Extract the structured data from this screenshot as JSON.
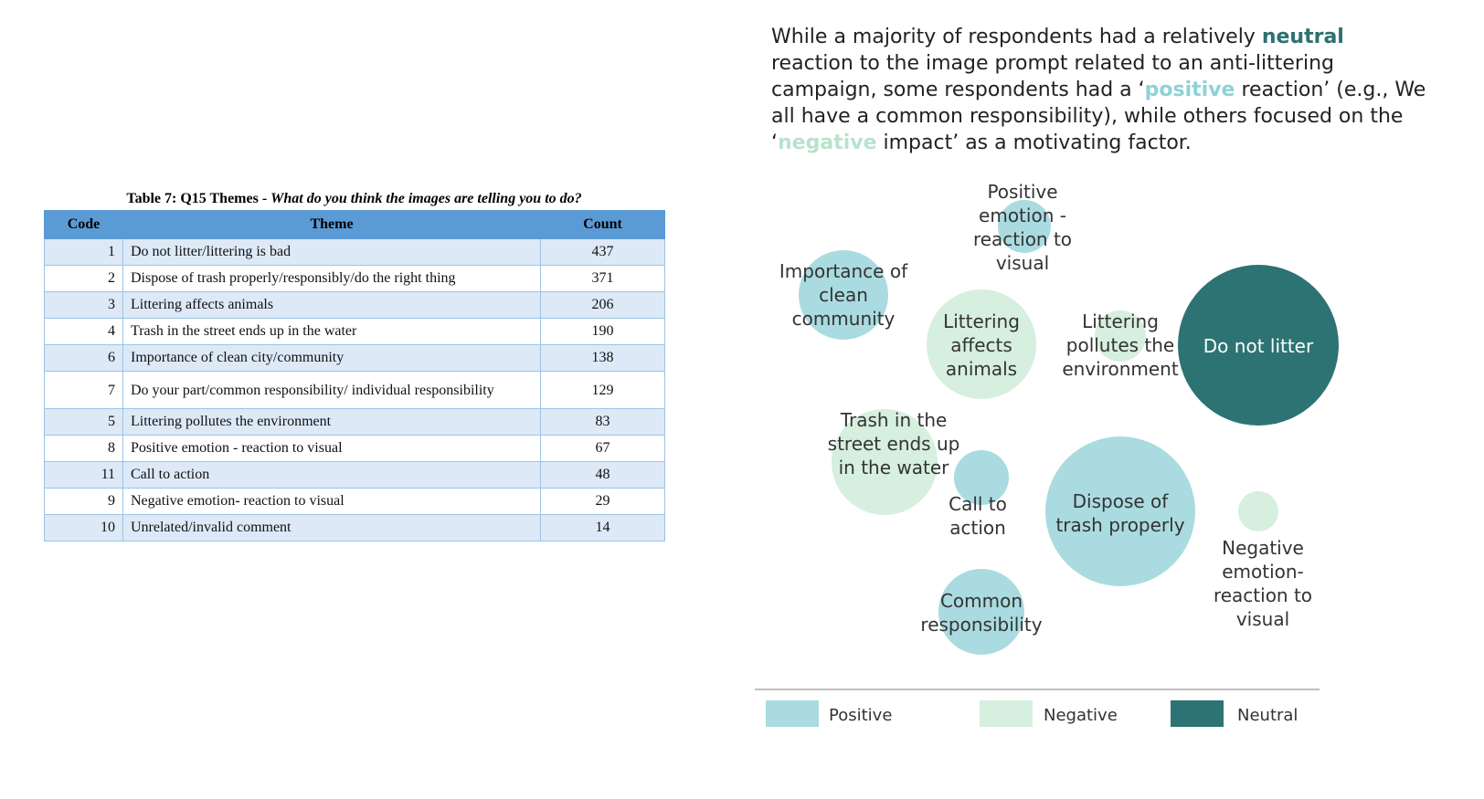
{
  "table": {
    "caption_prefix": "Table 7: Q15 Themes - ",
    "caption_question": "What do you think the images are telling you to do?",
    "headers": [
      "Code",
      "Theme",
      "Count"
    ],
    "rows": [
      {
        "code": "1",
        "theme": "Do not litter/littering is bad",
        "count": "437"
      },
      {
        "code": "2",
        "theme": "Dispose of trash properly/responsibly/do the right thing",
        "count": "371"
      },
      {
        "code": "3",
        "theme": "Littering affects animals",
        "count": "206"
      },
      {
        "code": "4",
        "theme": "Trash in the street ends up in the water",
        "count": "190"
      },
      {
        "code": "6",
        "theme": "Importance of clean city/community",
        "count": "138"
      },
      {
        "code": "7",
        "theme": "Do your part/common responsibility/ individual responsibility",
        "count": "129"
      },
      {
        "code": "5",
        "theme": "Littering pollutes the environment",
        "count": "83"
      },
      {
        "code": "8",
        "theme": "Positive emotion - reaction to visual",
        "count": "67"
      },
      {
        "code": "11",
        "theme": "Call to action",
        "count": "48"
      },
      {
        "code": "9",
        "theme": "Negative emotion- reaction to visual",
        "count": "29"
      },
      {
        "code": "10",
        "theme": "Unrelated/invalid comment",
        "count": "14"
      }
    ]
  },
  "intro": {
    "part1": "While a majority of respondents had a relatively ",
    "neutral_word": "neutral",
    "part2": " reaction to the image prompt related to an anti-littering campaign, some respondents had a ‘",
    "positive_word": "positive",
    "part3": " reaction’ (e.g., We all have a common responsibility), while others focused on the ‘",
    "negative_word": "negative",
    "part4": " impact’ as a motivating factor."
  },
  "colors": {
    "positive": "#a9dbe0",
    "negative": "#d6efdf",
    "neutral": "#2d7373",
    "axis": "#999999"
  },
  "chart_data": {
    "type": "bubble",
    "bubbles": [
      {
        "label": [
          "Do not litter"
        ],
        "category": "neutral"
      },
      {
        "label": [
          "Dispose of",
          "trash properly"
        ],
        "category": "positive"
      },
      {
        "label": [
          "Littering",
          "affects",
          "animals"
        ],
        "category": "negative"
      },
      {
        "label": [
          "Trash in the",
          "street ends up",
          "in the water"
        ],
        "category": "negative"
      },
      {
        "label": [
          "Importance of",
          "clean",
          "community"
        ],
        "category": "positive"
      },
      {
        "label": [
          "Common",
          "responsibility"
        ],
        "category": "positive"
      },
      {
        "label": [
          "Littering",
          "pollutes the",
          "environment"
        ],
        "category": "negative"
      },
      {
        "label": [
          "Positive",
          "emotion -",
          "reaction to",
          "visual"
        ],
        "category": "positive"
      },
      {
        "label": [
          "Call to",
          "action"
        ],
        "category": "positive"
      },
      {
        "label": [
          "Negative",
          "emotion-",
          "reaction to",
          "visual"
        ],
        "category": "negative"
      }
    ],
    "legend": [
      {
        "name": "Positive",
        "category": "positive"
      },
      {
        "name": "Negative",
        "category": "negative"
      },
      {
        "name": "Neutral",
        "category": "neutral"
      }
    ]
  }
}
